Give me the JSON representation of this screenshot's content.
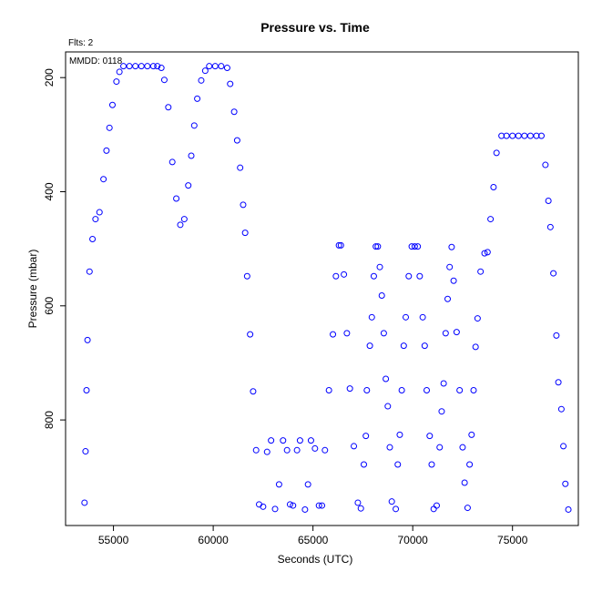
{
  "chart_data": {
    "type": "scatter",
    "title": "Pressure  vs. Time",
    "xlabel": "Seconds (UTC)",
    "ylabel": "Pressure (mbar)",
    "corner_labels": [
      "Flts: 2",
      "MMDD: 0118"
    ],
    "xlim": [
      52600,
      78300
    ],
    "ylim": [
      985,
      155
    ],
    "y_inverted": true,
    "grid": false,
    "marker_color": "#0000ff",
    "x_ticks": [
      55000,
      60000,
      65000,
      70000,
      75000
    ],
    "x_tick_labels": [
      "55000",
      "60000",
      "65000",
      "70000",
      "75000"
    ],
    "y_ticks": [
      200,
      400,
      600,
      800
    ],
    "y_tick_labels": [
      "200",
      "400",
      "600",
      "800"
    ],
    "series": [
      {
        "points": [
          [
            53550,
            945
          ],
          [
            53600,
            855
          ],
          [
            53650,
            748
          ],
          [
            53700,
            660
          ],
          [
            53800,
            540
          ],
          [
            53950,
            483
          ],
          [
            54100,
            448
          ],
          [
            54300,
            436
          ],
          [
            54500,
            378
          ],
          [
            54650,
            328
          ],
          [
            54800,
            288
          ],
          [
            54950,
            248
          ],
          [
            55150,
            207
          ],
          [
            55300,
            190
          ],
          [
            55500,
            180
          ],
          [
            55800,
            180
          ],
          [
            56100,
            180
          ],
          [
            56400,
            180
          ],
          [
            56700,
            180
          ],
          [
            57000,
            180
          ],
          [
            57200,
            180
          ],
          [
            57400,
            183
          ],
          [
            57550,
            204
          ],
          [
            57750,
            252
          ],
          [
            57950,
            348
          ],
          [
            58150,
            412
          ],
          [
            58350,
            458
          ],
          [
            58550,
            448
          ],
          [
            58750,
            389
          ],
          [
            58900,
            337
          ],
          [
            59050,
            284
          ],
          [
            59200,
            237
          ],
          [
            59400,
            205
          ],
          [
            59600,
            188
          ],
          [
            59800,
            180
          ],
          [
            60100,
            180
          ],
          [
            60400,
            180
          ],
          [
            60700,
            183
          ],
          [
            60850,
            211
          ],
          [
            61050,
            260
          ],
          [
            61200,
            310
          ],
          [
            61350,
            358
          ],
          [
            61500,
            423
          ],
          [
            61600,
            472
          ],
          [
            61700,
            548
          ],
          [
            61850,
            650
          ],
          [
            62000,
            750
          ],
          [
            62150,
            853
          ],
          [
            62300,
            948
          ],
          [
            62500,
            952
          ],
          [
            62700,
            856
          ],
          [
            62900,
            836
          ],
          [
            63100,
            956
          ],
          [
            63300,
            913
          ],
          [
            63500,
            836
          ],
          [
            63700,
            853
          ],
          [
            63850,
            948
          ],
          [
            64000,
            950
          ],
          [
            64200,
            853
          ],
          [
            64350,
            836
          ],
          [
            64600,
            957
          ],
          [
            64750,
            913
          ],
          [
            64900,
            836
          ],
          [
            65100,
            850
          ],
          [
            65300,
            950
          ],
          [
            65450,
            950
          ],
          [
            65600,
            853
          ],
          [
            65800,
            748
          ],
          [
            66000,
            650
          ],
          [
            66150,
            548
          ],
          [
            66300,
            494
          ],
          [
            66400,
            494
          ],
          [
            66550,
            545
          ],
          [
            66700,
            648
          ],
          [
            66850,
            745
          ],
          [
            67050,
            846
          ],
          [
            67250,
            945
          ],
          [
            67400,
            955
          ],
          [
            67550,
            878
          ],
          [
            67650,
            828
          ],
          [
            67700,
            748
          ],
          [
            67850,
            670
          ],
          [
            67950,
            620
          ],
          [
            68050,
            548
          ],
          [
            68150,
            496
          ],
          [
            68250,
            496
          ],
          [
            68350,
            532
          ],
          [
            68450,
            582
          ],
          [
            68550,
            648
          ],
          [
            68650,
            728
          ],
          [
            68750,
            776
          ],
          [
            68850,
            848
          ],
          [
            68950,
            943
          ],
          [
            69150,
            956
          ],
          [
            69250,
            878
          ],
          [
            69350,
            826
          ],
          [
            69450,
            748
          ],
          [
            69550,
            670
          ],
          [
            69650,
            620
          ],
          [
            69800,
            548
          ],
          [
            69950,
            496
          ],
          [
            70100,
            496
          ],
          [
            70250,
            496
          ],
          [
            70350,
            548
          ],
          [
            70500,
            620
          ],
          [
            70600,
            670
          ],
          [
            70700,
            748
          ],
          [
            70850,
            828
          ],
          [
            70950,
            878
          ],
          [
            71050,
            956
          ],
          [
            71200,
            950
          ],
          [
            71350,
            848
          ],
          [
            71450,
            785
          ],
          [
            71550,
            736
          ],
          [
            71650,
            648
          ],
          [
            71750,
            588
          ],
          [
            71850,
            532
          ],
          [
            71950,
            497
          ],
          [
            72050,
            556
          ],
          [
            72200,
            646
          ],
          [
            72350,
            748
          ],
          [
            72500,
            848
          ],
          [
            72600,
            910
          ],
          [
            72750,
            954
          ],
          [
            72850,
            878
          ],
          [
            72950,
            826
          ],
          [
            73050,
            748
          ],
          [
            73150,
            672
          ],
          [
            73250,
            622
          ],
          [
            73400,
            540
          ],
          [
            73600,
            508
          ],
          [
            73750,
            506
          ],
          [
            73900,
            448
          ],
          [
            74050,
            392
          ],
          [
            74200,
            332
          ],
          [
            74450,
            302
          ],
          [
            74700,
            302
          ],
          [
            75000,
            302
          ],
          [
            75300,
            302
          ],
          [
            75600,
            302
          ],
          [
            75900,
            302
          ],
          [
            76200,
            302
          ],
          [
            76450,
            302
          ],
          [
            76650,
            353
          ],
          [
            76800,
            416
          ],
          [
            76900,
            462
          ],
          [
            77050,
            543
          ],
          [
            77200,
            652
          ],
          [
            77300,
            734
          ],
          [
            77450,
            781
          ],
          [
            77550,
            846
          ],
          [
            77650,
            912
          ],
          [
            77800,
            957
          ]
        ]
      }
    ]
  }
}
